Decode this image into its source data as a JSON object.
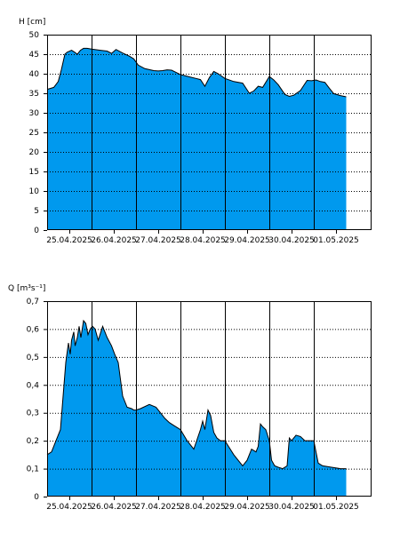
{
  "chart_data": [
    {
      "type": "area",
      "ylabel": "H [cm]",
      "ylim": [
        0,
        50
      ],
      "yticks": [
        0,
        5,
        10,
        15,
        20,
        25,
        30,
        35,
        40,
        45,
        50
      ],
      "xlim": [
        0,
        7.3
      ],
      "xticks": [
        {
          "x": 0.5,
          "label": "25.04.2025"
        },
        {
          "x": 1.5,
          "label": "26.04.2025"
        },
        {
          "x": 2.5,
          "label": "27.04.2025"
        },
        {
          "x": 3.5,
          "label": "28.04.2025"
        },
        {
          "x": 4.5,
          "label": "29.04.2025"
        },
        {
          "x": 5.5,
          "label": "30.04.2025"
        },
        {
          "x": 6.5,
          "label": "01.05.2025"
        }
      ],
      "day_boundaries": [
        1,
        2,
        3,
        4,
        5,
        6
      ],
      "grid": true,
      "fill_color": "#0099ee",
      "line_color": "#000000",
      "series": [
        {
          "x": [
            0.0,
            0.15,
            0.25,
            0.32,
            0.4,
            0.45,
            0.55,
            0.62,
            0.68,
            0.75,
            0.82,
            0.9,
            1.0,
            1.2,
            1.35,
            1.45,
            1.55,
            1.7,
            1.85,
            1.95,
            2.05,
            2.2,
            2.4,
            2.5,
            2.6,
            2.7,
            2.8,
            3.0,
            3.2,
            3.35,
            3.45,
            3.55,
            3.65,
            3.75,
            3.85,
            4.0,
            4.2,
            4.4,
            4.55,
            4.65,
            4.75,
            4.85,
            5.0,
            5.1,
            5.2,
            5.35,
            5.45,
            5.55,
            5.7,
            5.85,
            5.95,
            6.05,
            6.15,
            6.25,
            6.35,
            6.45,
            6.6,
            6.73
          ],
          "y": [
            36,
            36.5,
            38,
            41,
            45,
            45.5,
            46,
            45.5,
            45,
            46,
            46.5,
            46.5,
            46.3,
            46,
            45.8,
            45.2,
            46.2,
            45.3,
            44.5,
            43.8,
            42.2,
            41.3,
            40.8,
            40.7,
            40.8,
            41,
            40.9,
            39.8,
            39.2,
            38.8,
            38.5,
            36.8,
            39,
            40.6,
            40,
            38.8,
            38,
            37.6,
            35,
            35.6,
            36.8,
            36.5,
            39.3,
            38.4,
            37.2,
            34.7,
            34.2,
            34.5,
            35.7,
            38.3,
            38.2,
            38.4,
            38,
            37.8,
            36.3,
            34.9,
            34.4,
            34.1
          ]
        }
      ]
    },
    {
      "type": "area",
      "ylabel": "Q [m³s⁻¹]",
      "ylim": [
        0,
        0.7
      ],
      "yticks": [
        0,
        0.1,
        0.2,
        0.3,
        0.4,
        0.5,
        0.6,
        0.7
      ],
      "ytick_labels": [
        "0",
        "0,1",
        "0,2",
        "0,3",
        "0,4",
        "0,5",
        "0,6",
        "0,7"
      ],
      "xlim": [
        0,
        7.3
      ],
      "xticks": [
        {
          "x": 0.5,
          "label": "25.04.2025"
        },
        {
          "x": 1.5,
          "label": "26.04.2025"
        },
        {
          "x": 2.5,
          "label": "27.04.2025"
        },
        {
          "x": 3.5,
          "label": "28.04.2025"
        },
        {
          "x": 4.5,
          "label": "29.04.2025"
        },
        {
          "x": 5.5,
          "label": "30.04.2025"
        },
        {
          "x": 6.5,
          "label": "01.05.2025"
        }
      ],
      "day_boundaries": [
        1,
        2,
        3,
        4,
        5,
        6
      ],
      "grid": true,
      "fill_color": "#0099ee",
      "line_color": "#000000",
      "series": [
        {
          "x": [
            0.0,
            0.1,
            0.2,
            0.3,
            0.35,
            0.42,
            0.48,
            0.52,
            0.55,
            0.6,
            0.63,
            0.68,
            0.72,
            0.76,
            0.82,
            0.87,
            0.92,
            0.97,
            1.02,
            1.08,
            1.15,
            1.25,
            1.35,
            1.45,
            1.52,
            1.6,
            1.7,
            1.8,
            1.9,
            1.95,
            2.0,
            2.1,
            2.3,
            2.45,
            2.55,
            2.65,
            2.75,
            2.85,
            3.0,
            3.15,
            3.3,
            3.45,
            3.5,
            3.55,
            3.62,
            3.68,
            3.75,
            3.82,
            3.9,
            4.0,
            4.2,
            4.4,
            4.5,
            4.6,
            4.7,
            4.75,
            4.8,
            4.85,
            4.92,
            5.0,
            5.05,
            5.12,
            5.2,
            5.3,
            5.4,
            5.45,
            5.5,
            5.6,
            5.7,
            5.8,
            6.0,
            6.1,
            6.15,
            6.2,
            6.4,
            6.6,
            6.73
          ],
          "y": [
            0.15,
            0.16,
            0.2,
            0.24,
            0.34,
            0.48,
            0.55,
            0.51,
            0.56,
            0.59,
            0.54,
            0.57,
            0.61,
            0.57,
            0.63,
            0.62,
            0.58,
            0.6,
            0.61,
            0.6,
            0.56,
            0.61,
            0.57,
            0.54,
            0.51,
            0.48,
            0.36,
            0.32,
            0.315,
            0.31,
            0.31,
            0.315,
            0.33,
            0.32,
            0.3,
            0.28,
            0.265,
            0.255,
            0.24,
            0.2,
            0.17,
            0.24,
            0.27,
            0.24,
            0.31,
            0.29,
            0.23,
            0.21,
            0.2,
            0.2,
            0.15,
            0.11,
            0.13,
            0.17,
            0.16,
            0.18,
            0.26,
            0.25,
            0.24,
            0.2,
            0.13,
            0.11,
            0.105,
            0.1,
            0.11,
            0.21,
            0.2,
            0.22,
            0.215,
            0.2,
            0.2,
            0.12,
            0.115,
            0.11,
            0.105,
            0.1,
            0.1
          ]
        }
      ]
    }
  ]
}
